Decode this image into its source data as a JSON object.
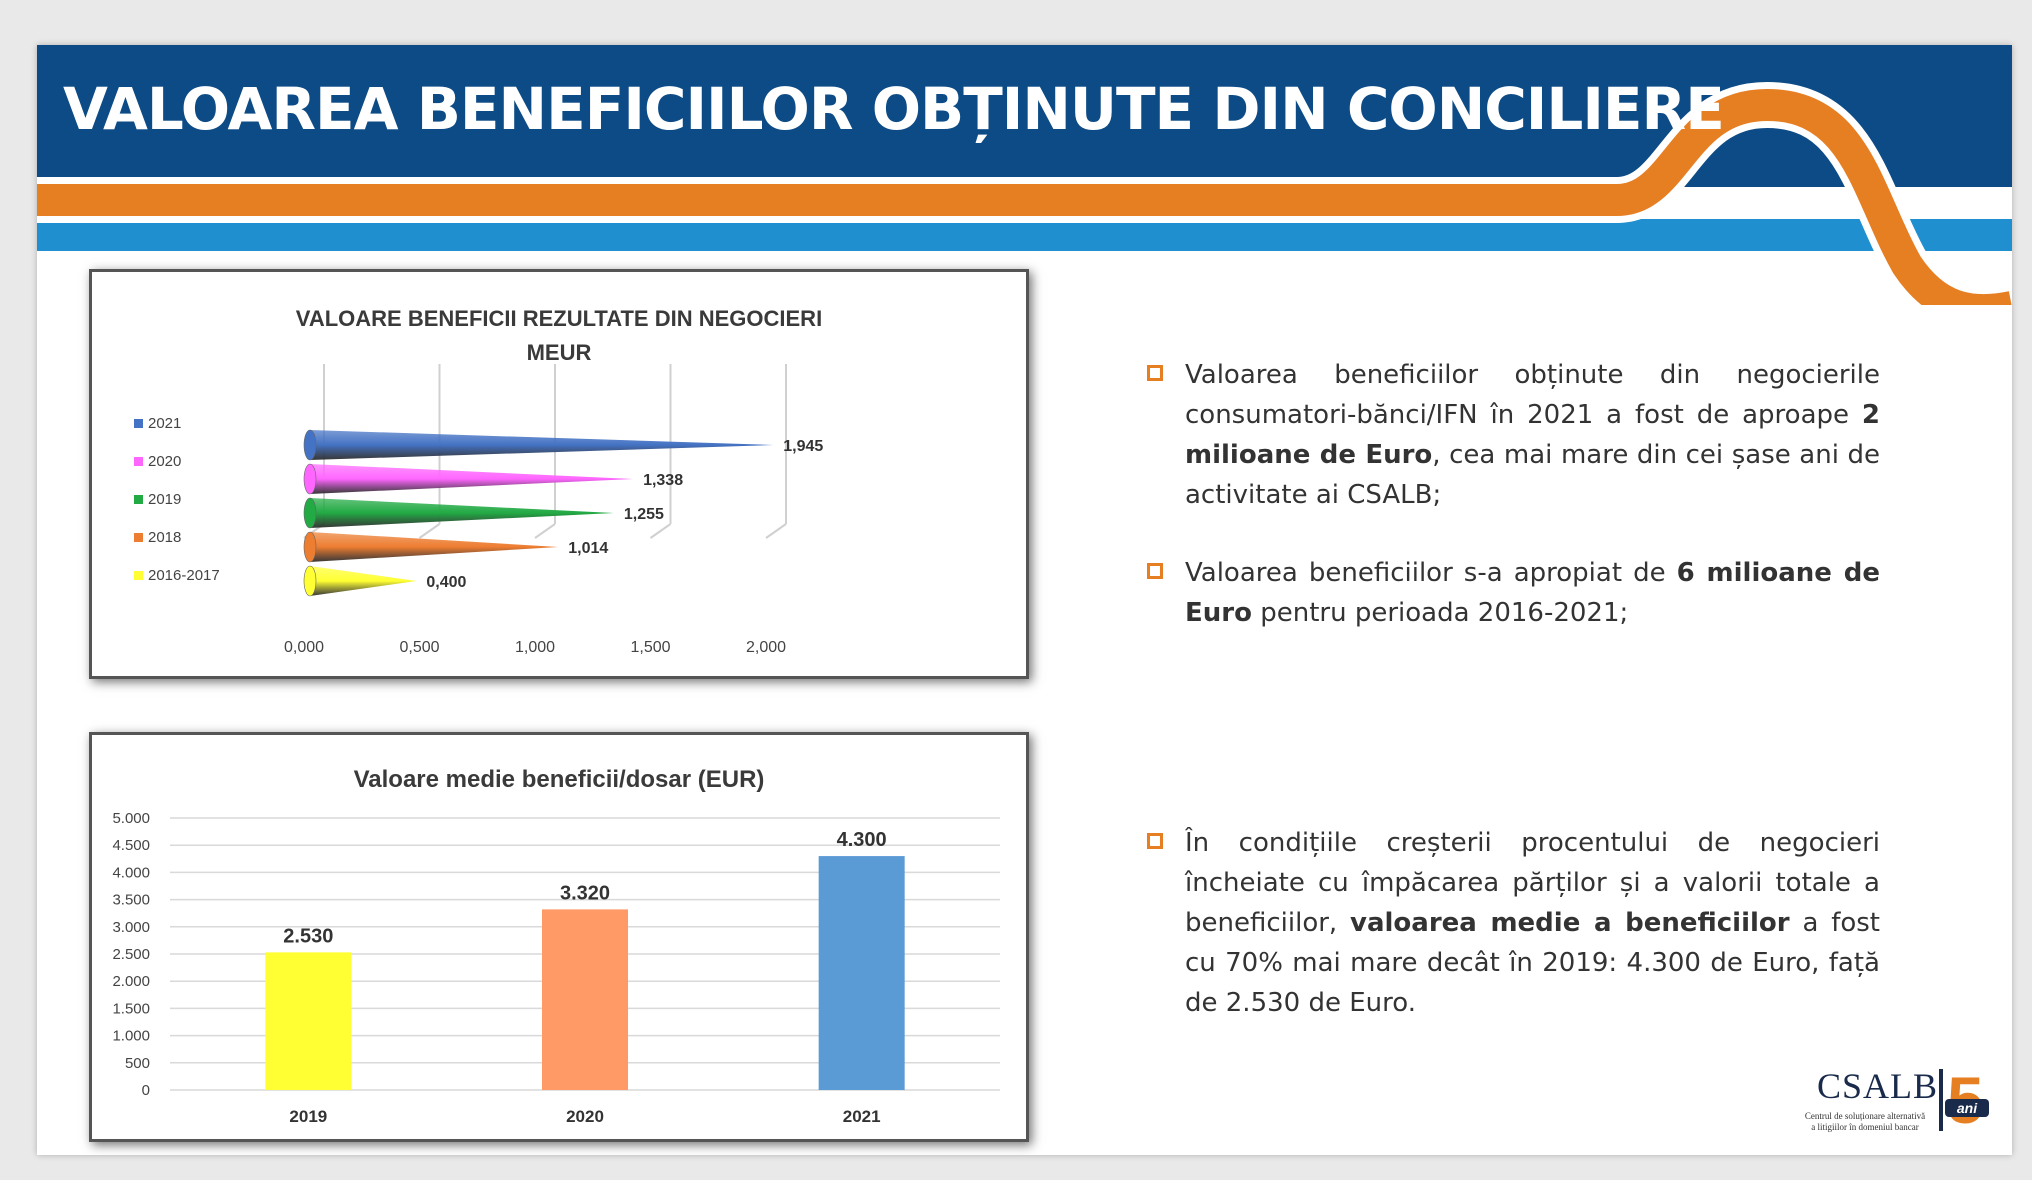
{
  "title": "VALOAREA BENEFICIILOR OBȚINUTE DIN CONCILIERE",
  "colors": {
    "navy": "#0d4b86",
    "orange": "#e67e22",
    "lightblue": "#1f8fcf"
  },
  "chart_data": [
    {
      "type": "bar",
      "orientation": "horizontal",
      "title": "VALOARE BENEFICII REZULTATE DIN NEGOCIERI",
      "subtitle": "MEUR",
      "categories": [
        "2021",
        "2020",
        "2019",
        "2018",
        "2016-2017"
      ],
      "values": [
        1.945,
        1.338,
        1.255,
        1.014,
        0.4
      ],
      "value_labels": [
        "1,945",
        "1,338",
        "1,255",
        "1,014",
        "0,400"
      ],
      "colors": [
        "#4472c4",
        "#ff66ff",
        "#22aa44",
        "#ed7d31",
        "#ffff33"
      ],
      "xlim": [
        0,
        2
      ],
      "ticks": [
        0,
        0.5,
        1,
        1.5,
        2
      ],
      "tick_labels": [
        "0,000",
        "0,500",
        "1,000",
        "1,500",
        "2,000"
      ],
      "legend": "left",
      "grid": true
    },
    {
      "type": "bar",
      "title": "Valoare medie beneficii/dosar (EUR)",
      "categories": [
        "2019",
        "2020",
        "2021"
      ],
      "values": [
        2530,
        3320,
        4300
      ],
      "value_labels": [
        "2.530",
        "3.320",
        "4.300"
      ],
      "colors": [
        "#ffff33",
        "#ff9966",
        "#5b9bd5"
      ],
      "ylim": [
        0,
        5000
      ],
      "ticks": [
        0,
        500,
        1000,
        1500,
        2000,
        2500,
        3000,
        3500,
        4000,
        4500,
        5000
      ],
      "tick_labels": [
        "0",
        "500",
        "1.000",
        "1.500",
        "2.000",
        "2.500",
        "3.000",
        "3.500",
        "4.000",
        "4.500",
        "5.000"
      ],
      "grid": true
    }
  ],
  "bullets": [
    {
      "parts": [
        {
          "text": "Valoarea beneficiilor obținute din negocierile consumatori-bănci/IFN în 2021 a fost de aproape ",
          "bold": false
        },
        {
          "text": "2 milioane de Euro",
          "bold": true
        },
        {
          "text": ", cea mai mare din cei șase ani de activitate ai CSALB;",
          "bold": false
        }
      ]
    },
    {
      "parts": [
        {
          "text": " Valoarea beneficiilor s-a apropiat de ",
          "bold": false
        },
        {
          "text": "6 milioane de Euro",
          "bold": true
        },
        {
          "text": " pentru perioada 2016-2021;",
          "bold": false
        }
      ]
    },
    {
      "parts": [
        {
          "text": "În condițiile creșterii procentului de negocieri încheiate cu împăcarea părților și a valorii totale a beneficiilor, ",
          "bold": false
        },
        {
          "text": "valoarea medie a beneficiilor",
          "bold": true
        },
        {
          "text": " a fost cu 70% mai mare decât în 2019: 4.300 de Euro, față de 2.530 de Euro.",
          "bold": false
        }
      ]
    }
  ],
  "logo": {
    "name": "CSALB",
    "tagline_1": "Centrul de soluționare alternativă",
    "tagline_2": "a litigiilor în domeniul bancar",
    "anniversary_number": "5",
    "anniversary_word": "ani"
  }
}
